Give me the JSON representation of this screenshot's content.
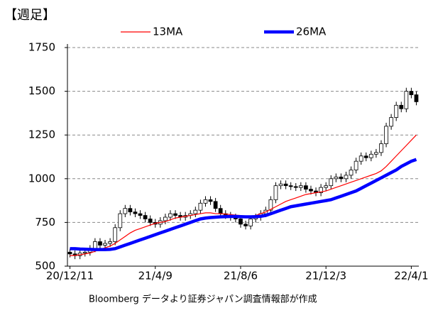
{
  "chart_data": {
    "type": "candlestick",
    "title": "【週足】",
    "source": "Bloomberg データより証券ジャパン調査情報部が作成",
    "categories": [
      "20/12/11",
      null,
      null,
      null,
      null,
      null,
      null,
      null,
      null,
      null,
      null,
      null,
      null,
      null,
      null,
      null,
      null,
      "21/4/9",
      null,
      null,
      null,
      null,
      null,
      null,
      null,
      null,
      null,
      null,
      null,
      null,
      null,
      null,
      null,
      null,
      "21/8/6",
      null,
      null,
      null,
      null,
      null,
      null,
      null,
      null,
      null,
      null,
      null,
      null,
      null,
      null,
      null,
      null,
      "21/12/3",
      null,
      null,
      null,
      null,
      null,
      null,
      null,
      null,
      null,
      null,
      null,
      null,
      null,
      null,
      null,
      null,
      "22/4/1",
      null
    ],
    "open": [
      580,
      570,
      560,
      575,
      580,
      600,
      640,
      620,
      630,
      640,
      720,
      800,
      830,
      810,
      800,
      790,
      770,
      750,
      740,
      760,
      780,
      800,
      790,
      780,
      790,
      800,
      820,
      860,
      880,
      870,
      830,
      800,
      790,
      780,
      770,
      740,
      730,
      770,
      780,
      800,
      820,
      880,
      960,
      970,
      960,
      955,
      950,
      960,
      940,
      930,
      920,
      950,
      960,
      1000,
      1010,
      1000,
      1020,
      1050,
      1100,
      1130,
      1120,
      1140,
      1150,
      1200,
      1300,
      1350,
      1420,
      1400,
      1500,
      1480
    ],
    "high": [
      600,
      590,
      595,
      600,
      620,
      660,
      660,
      650,
      660,
      740,
      820,
      850,
      850,
      830,
      820,
      810,
      790,
      770,
      780,
      800,
      820,
      820,
      810,
      810,
      820,
      840,
      880,
      900,
      900,
      890,
      850,
      820,
      810,
      800,
      790,
      760,
      790,
      800,
      820,
      840,
      900,
      980,
      990,
      990,
      980,
      975,
      980,
      980,
      960,
      950,
      970,
      980,
      1020,
      1030,
      1030,
      1040,
      1070,
      1120,
      1150,
      1150,
      1160,
      1170,
      1220,
      1320,
      1370,
      1440,
      1440,
      1520,
      1520,
      1500
    ],
    "low": [
      550,
      540,
      540,
      555,
      560,
      580,
      600,
      600,
      610,
      620,
      700,
      780,
      790,
      780,
      770,
      750,
      730,
      720,
      720,
      740,
      760,
      770,
      760,
      760,
      770,
      780,
      800,
      840,
      850,
      810,
      780,
      770,
      760,
      750,
      720,
      710,
      710,
      750,
      760,
      780,
      800,
      860,
      940,
      940,
      935,
      930,
      930,
      920,
      910,
      900,
      900,
      930,
      940,
      980,
      980,
      980,
      1000,
      1030,
      1080,
      1100,
      1100,
      1120,
      1130,
      1180,
      1280,
      1330,
      1380,
      1380,
      1460,
      1420
    ],
    "close": [
      570,
      560,
      575,
      580,
      600,
      640,
      620,
      630,
      640,
      720,
      800,
      830,
      810,
      800,
      790,
      770,
      750,
      740,
      760,
      780,
      800,
      790,
      780,
      790,
      800,
      820,
      860,
      880,
      870,
      830,
      800,
      790,
      780,
      770,
      740,
      730,
      770,
      780,
      800,
      820,
      880,
      960,
      970,
      960,
      955,
      950,
      960,
      940,
      930,
      920,
      950,
      960,
      1000,
      1010,
      1000,
      1020,
      1050,
      1100,
      1130,
      1120,
      1140,
      1150,
      1200,
      1300,
      1350,
      1420,
      1400,
      1500,
      1480,
      1440
    ],
    "series": [
      {
        "name": "13MA",
        "color": "#ff0000",
        "values": [
          560,
          562,
          565,
          570,
          575,
          585,
          595,
          605,
          615,
          630,
          650,
          670,
          690,
          705,
          715,
          725,
          735,
          745,
          750,
          755,
          765,
          775,
          780,
          785,
          790,
          795,
          800,
          805,
          805,
          800,
          800,
          798,
          795,
          792,
          790,
          785,
          785,
          790,
          800,
          810,
          825,
          840,
          855,
          870,
          880,
          890,
          900,
          910,
          915,
          920,
          925,
          930,
          940,
          950,
          960,
          970,
          980,
          990,
          1000,
          1010,
          1020,
          1030,
          1045,
          1070,
          1100,
          1130,
          1160,
          1190,
          1220,
          1250
        ]
      },
      {
        "name": "26MA",
        "color": "#0000ff",
        "values": [
          600,
          600,
          598,
          597,
          596,
          595,
          595,
          595,
          596,
          600,
          610,
          620,
          630,
          640,
          650,
          660,
          670,
          680,
          690,
          700,
          710,
          720,
          730,
          740,
          750,
          760,
          770,
          775,
          778,
          780,
          782,
          783,
          784,
          784,
          783,
          782,
          782,
          783,
          785,
          790,
          800,
          810,
          820,
          830,
          840,
          845,
          850,
          855,
          860,
          865,
          870,
          875,
          880,
          890,
          900,
          910,
          920,
          930,
          945,
          960,
          975,
          990,
          1005,
          1020,
          1035,
          1050,
          1070,
          1085,
          1100,
          1110
        ]
      }
    ],
    "ylim": [
      500,
      1750
    ],
    "yticks": [
      500,
      750,
      1000,
      1250,
      1500,
      1750
    ],
    "grid": true
  }
}
